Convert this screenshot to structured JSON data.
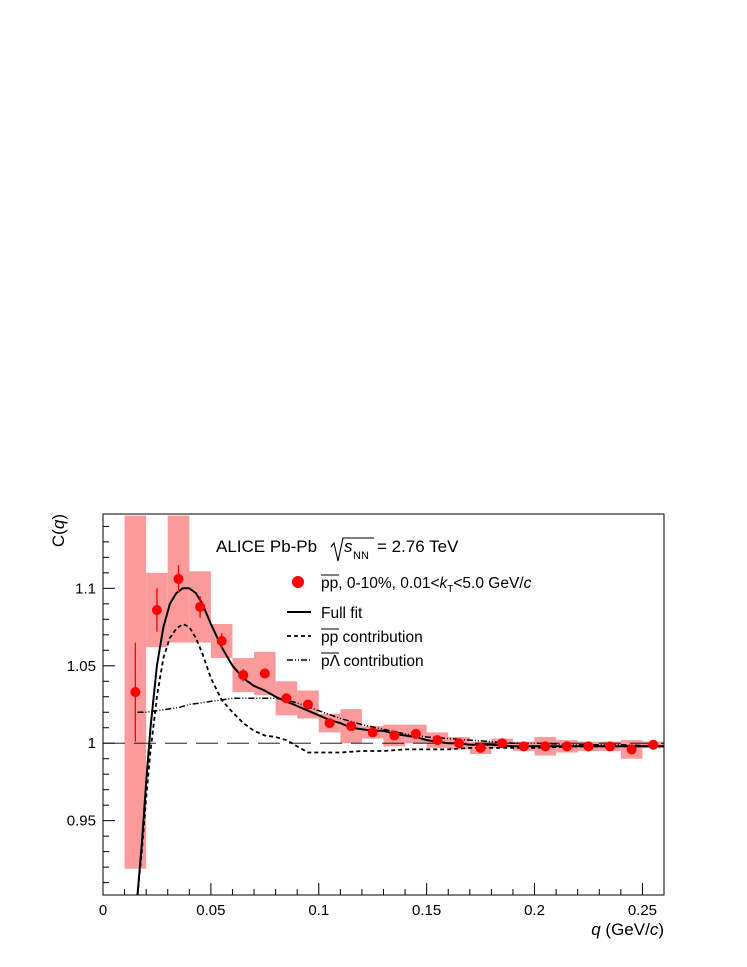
{
  "chart_data": {
    "type": "scatter",
    "experiment_label": {
      "prefix": "ALICE Pb-Pb",
      "energy_symbol": "s",
      "energy_subscript": "NN",
      "energy_value": "= 2.76 TeV"
    },
    "xlabel": {
      "var": "q",
      "unit_open": " (GeV/",
      "unit_c": "c",
      "unit_close": ")"
    },
    "ylabel": {
      "var_prefix": "C(",
      "var": "q",
      "var_suffix": ")"
    },
    "xlim": [
      0,
      0.26
    ],
    "ylim": [
      0.902,
      1.148
    ],
    "xticks": [
      {
        "v": 0,
        "label": "0"
      },
      {
        "v": 0.05,
        "label": "0.05"
      },
      {
        "v": 0.1,
        "label": "0.1"
      },
      {
        "v": 0.15,
        "label": "0.15"
      },
      {
        "v": 0.2,
        "label": "0.2"
      },
      {
        "v": 0.25,
        "label": "0.25"
      }
    ],
    "yticks": [
      {
        "v": 0.95,
        "label": "0.95"
      },
      {
        "v": 1.0,
        "label": "1"
      },
      {
        "v": 1.05,
        "label": "1.05"
      },
      {
        "v": 1.1,
        "label": "1.1"
      }
    ],
    "reference_line": {
      "y": 1.0,
      "style": "long-dash"
    },
    "legend": [
      {
        "key": "data",
        "marker": "circle",
        "pair": "pp",
        "mid": ", 0-10%, 0.01<",
        "k": "k",
        "ksub": "T",
        "post": "<5.0 GeV/",
        "c": "c"
      },
      {
        "key": "full",
        "line": "solid",
        "text": "Full fit"
      },
      {
        "key": "pp",
        "line": "dashed",
        "pair": "pp",
        "text": " contribution"
      },
      {
        "key": "pl",
        "line": "dash-dot-dot",
        "pair": "pΛ",
        "text": " contribution"
      }
    ],
    "series": [
      {
        "key": "data",
        "name": "pp, 0-10%, 0.01<kT<5.0 GeV/c",
        "color": "#ff0000",
        "syst_color": "#fa9a9a",
        "points": [
          {
            "x": 0.015,
            "y": 1.033,
            "stat": 0.032,
            "syst": 0.114,
            "syst_w": 0.005
          },
          {
            "x": 0.025,
            "y": 1.086,
            "stat": 0.014,
            "syst": 0.024,
            "syst_w": 0.005
          },
          {
            "x": 0.035,
            "y": 1.106,
            "stat": 0.009,
            "syst": 0.041,
            "syst_w": 0.005
          },
          {
            "x": 0.045,
            "y": 1.088,
            "stat": 0.007,
            "syst": 0.023,
            "syst_w": 0.005
          },
          {
            "x": 0.055,
            "y": 1.066,
            "stat": 0.005,
            "syst": 0.011,
            "syst_w": 0.005
          },
          {
            "x": 0.065,
            "y": 1.044,
            "stat": 0.004,
            "syst": 0.011,
            "syst_w": 0.005
          },
          {
            "x": 0.075,
            "y": 1.045,
            "stat": 0.003,
            "syst": 0.014,
            "syst_w": 0.005
          },
          {
            "x": 0.085,
            "y": 1.029,
            "stat": 0.003,
            "syst": 0.011,
            "syst_w": 0.005
          },
          {
            "x": 0.095,
            "y": 1.025,
            "stat": 0.003,
            "syst": 0.009,
            "syst_w": 0.005
          },
          {
            "x": 0.105,
            "y": 1.013,
            "stat": 0.002,
            "syst": 0.006,
            "syst_w": 0.005
          },
          {
            "x": 0.115,
            "y": 1.011,
            "stat": 0.002,
            "syst": 0.011,
            "syst_w": 0.005
          },
          {
            "x": 0.125,
            "y": 1.007,
            "stat": 0.002,
            "syst": 0.004,
            "syst_w": 0.005
          },
          {
            "x": 0.135,
            "y": 1.005,
            "stat": 0.002,
            "syst": 0.007,
            "syst_w": 0.005
          },
          {
            "x": 0.145,
            "y": 1.006,
            "stat": 0.002,
            "syst": 0.006,
            "syst_w": 0.005
          },
          {
            "x": 0.155,
            "y": 1.002,
            "stat": 0.002,
            "syst": 0.005,
            "syst_w": 0.005
          },
          {
            "x": 0.165,
            "y": 1.0,
            "stat": 0.002,
            "syst": 0.004,
            "syst_w": 0.005
          },
          {
            "x": 0.175,
            "y": 0.997,
            "stat": 0.002,
            "syst": 0.004,
            "syst_w": 0.005
          },
          {
            "x": 0.185,
            "y": 1.0,
            "stat": 0.002,
            "syst": 0.003,
            "syst_w": 0.005
          },
          {
            "x": 0.195,
            "y": 0.998,
            "stat": 0.002,
            "syst": 0.003,
            "syst_w": 0.005
          },
          {
            "x": 0.205,
            "y": 0.998,
            "stat": 0.002,
            "syst": 0.006,
            "syst_w": 0.005
          },
          {
            "x": 0.215,
            "y": 0.998,
            "stat": 0.002,
            "syst": 0.004,
            "syst_w": 0.005
          },
          {
            "x": 0.225,
            "y": 0.998,
            "stat": 0.002,
            "syst": 0.003,
            "syst_w": 0.005
          },
          {
            "x": 0.235,
            "y": 0.998,
            "stat": 0.002,
            "syst": 0.003,
            "syst_w": 0.005
          },
          {
            "x": 0.245,
            "y": 0.996,
            "stat": 0.002,
            "syst": 0.006,
            "syst_w": 0.005
          },
          {
            "x": 0.255,
            "y": 0.999,
            "stat": 0.002,
            "syst": 0.002,
            "syst_w": 0.005
          }
        ]
      },
      {
        "key": "full",
        "name": "Full fit",
        "type": "line",
        "x": [
          0.016,
          0.018,
          0.02,
          0.022,
          0.025,
          0.028,
          0.031,
          0.034,
          0.037,
          0.04,
          0.043,
          0.046,
          0.05,
          0.055,
          0.06,
          0.065,
          0.07,
          0.075,
          0.08,
          0.085,
          0.09,
          0.095,
          0.1,
          0.105,
          0.11,
          0.115,
          0.12,
          0.125,
          0.13,
          0.135,
          0.14,
          0.145,
          0.15,
          0.155,
          0.16,
          0.165,
          0.17,
          0.175,
          0.18,
          0.19,
          0.2,
          0.21,
          0.22,
          0.23,
          0.24,
          0.25,
          0.26
        ],
        "y": [
          0.902,
          0.935,
          0.975,
          1.01,
          1.05,
          1.075,
          1.09,
          1.097,
          1.1,
          1.1,
          1.097,
          1.09,
          1.077,
          1.062,
          1.05,
          1.042,
          1.037,
          1.034,
          1.03,
          1.027,
          1.024,
          1.021,
          1.018,
          1.015,
          1.013,
          1.01,
          1.009,
          1.008,
          1.008,
          1.006,
          1.005,
          1.004,
          1.002,
          1.001,
          1.0,
          1.0,
          0.999,
          0.999,
          0.999,
          0.998,
          0.998,
          0.998,
          0.998,
          0.998,
          0.998,
          0.998,
          0.998
        ]
      },
      {
        "key": "pp",
        "name": "pp contribution",
        "type": "line",
        "x": [
          0.016,
          0.018,
          0.02,
          0.022,
          0.025,
          0.028,
          0.031,
          0.034,
          0.037,
          0.04,
          0.043,
          0.046,
          0.05,
          0.055,
          0.06,
          0.065,
          0.07,
          0.075,
          0.08,
          0.085,
          0.09,
          0.095,
          0.1,
          0.11,
          0.12,
          0.13,
          0.14,
          0.15,
          0.16,
          0.17,
          0.18,
          0.2,
          0.22,
          0.24,
          0.26
        ],
        "y": [
          0.902,
          0.93,
          0.965,
          0.995,
          1.03,
          1.055,
          1.068,
          1.074,
          1.077,
          1.075,
          1.068,
          1.058,
          1.042,
          1.028,
          1.02,
          1.013,
          1.008,
          1.005,
          1.004,
          1.002,
          0.998,
          0.994,
          0.994,
          0.994,
          0.995,
          0.995,
          0.996,
          0.996,
          0.996,
          0.997,
          0.997,
          0.997,
          0.998,
          0.998,
          0.998
        ]
      },
      {
        "key": "pl",
        "name": "pΛ contribution",
        "type": "line",
        "x": [
          0.016,
          0.02,
          0.025,
          0.03,
          0.035,
          0.04,
          0.045,
          0.05,
          0.055,
          0.06,
          0.065,
          0.07,
          0.075,
          0.08,
          0.085,
          0.09,
          0.1,
          0.11,
          0.12,
          0.13,
          0.14,
          0.15,
          0.16,
          0.17,
          0.18,
          0.19,
          0.2,
          0.22,
          0.24,
          0.26
        ],
        "y": [
          1.02,
          1.02,
          1.021,
          1.022,
          1.023,
          1.025,
          1.026,
          1.027,
          1.028,
          1.029,
          1.029,
          1.029,
          1.029,
          1.029,
          1.028,
          1.026,
          1.021,
          1.016,
          1.012,
          1.009,
          1.006,
          1.004,
          1.003,
          1.002,
          1.001,
          1.0,
          1.0,
          0.999,
          0.999,
          0.998
        ]
      }
    ]
  }
}
